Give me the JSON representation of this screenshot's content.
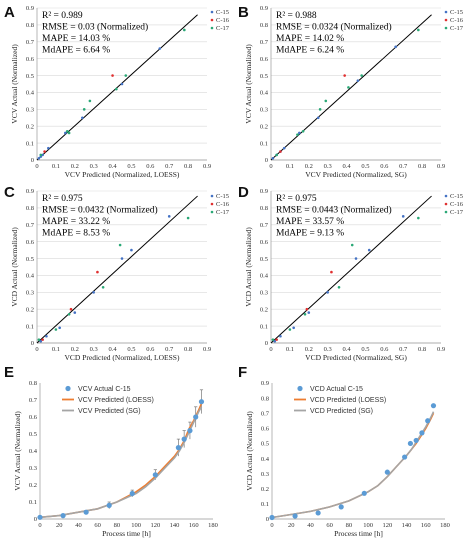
{
  "colors": {
    "c15": "#4472c4",
    "c16": "#e03030",
    "c17": "#2aa876",
    "actual": "#5b9bd5",
    "loess": "#ed7d31",
    "sg": "#a5a5a5",
    "fit": "#000000"
  },
  "chart_data": [
    {
      "panel": "A",
      "type": "scatter",
      "xlabel": "VCV Predicted (Normalized, LOESS)",
      "ylabel": "VCV Actual (Normalized)",
      "xlim": [
        0,
        0.9
      ],
      "ylim": [
        0,
        0.9
      ],
      "xticks": [
        "0",
        "0.1",
        "0.2",
        "0.3",
        "0.4",
        "0.5",
        "0.6",
        "0.7",
        "0.8",
        "0.9"
      ],
      "yticks": [
        "0",
        "0.1",
        "0.2",
        "0.3",
        "0.4",
        "0.5",
        "0.6",
        "0.7",
        "0.8",
        "0.9"
      ],
      "stats": [
        "R² = 0.989",
        "RMSE = 0.03 (Normalized)",
        "MAPE = 14.03 %",
        "MdAPE = 6.64 %"
      ],
      "legend": [
        "C-15",
        "C-16",
        "C-17"
      ],
      "fit_line": [
        [
          0,
          0
        ],
        [
          0.85,
          0.86
        ]
      ],
      "series": [
        {
          "name": "C-15",
          "color": "#4472c4",
          "points": [
            [
              0.01,
              0.01
            ],
            [
              0.02,
              0.02
            ],
            [
              0.03,
              0.03
            ],
            [
              0.06,
              0.07
            ],
            [
              0.15,
              0.16
            ],
            [
              0.24,
              0.25
            ],
            [
              0.45,
              0.45
            ],
            [
              0.65,
              0.66
            ]
          ]
        },
        {
          "name": "C-16",
          "color": "#e03030",
          "points": [
            [
              0.04,
              0.05
            ],
            [
              0.4,
              0.5
            ]
          ]
        },
        {
          "name": "C-17",
          "color": "#2aa876",
          "points": [
            [
              0.02,
              0.03
            ],
            [
              0.16,
              0.17
            ],
            [
              0.17,
              0.16
            ],
            [
              0.25,
              0.3
            ],
            [
              0.28,
              0.35
            ],
            [
              0.42,
              0.42
            ],
            [
              0.47,
              0.5
            ],
            [
              0.78,
              0.77
            ]
          ]
        }
      ]
    },
    {
      "panel": "B",
      "type": "scatter",
      "xlabel": "VCV Predicted (Normalized, SG)",
      "ylabel": "VCV Actual (Normalized)",
      "xlim": [
        0,
        0.9
      ],
      "ylim": [
        0,
        0.9
      ],
      "xticks": [
        "0",
        "0.1",
        "0.2",
        "0.3",
        "0.4",
        "0.5",
        "0.6",
        "0.7",
        "0.8",
        "0.9"
      ],
      "yticks": [
        "0",
        "0.1",
        "0.2",
        "0.3",
        "0.4",
        "0.5",
        "0.6",
        "0.7",
        "0.8",
        "0.9"
      ],
      "stats": [
        "R² = 0.988",
        "RMSE = 0.0324 (Normalized)",
        "MAPE = 14.02 %",
        "MdAPE = 6.24 %"
      ],
      "legend": [
        "C-15",
        "C-16",
        "C-17"
      ],
      "fit_line": [
        [
          0,
          0
        ],
        [
          0.85,
          0.86
        ]
      ],
      "series": [
        {
          "name": "C-15",
          "color": "#4472c4",
          "points": [
            [
              0.01,
              0.01
            ],
            [
              0.03,
              0.03
            ],
            [
              0.05,
              0.05
            ],
            [
              0.07,
              0.07
            ],
            [
              0.15,
              0.16
            ],
            [
              0.25,
              0.25
            ],
            [
              0.46,
              0.47
            ],
            [
              0.66,
              0.67
            ]
          ]
        },
        {
          "name": "C-16",
          "color": "#e03030",
          "points": [
            [
              0.05,
              0.05
            ],
            [
              0.39,
              0.5
            ]
          ]
        },
        {
          "name": "C-17",
          "color": "#2aa876",
          "points": [
            [
              0.03,
              0.03
            ],
            [
              0.14,
              0.15
            ],
            [
              0.17,
              0.17
            ],
            [
              0.26,
              0.3
            ],
            [
              0.29,
              0.35
            ],
            [
              0.41,
              0.43
            ],
            [
              0.48,
              0.5
            ],
            [
              0.78,
              0.77
            ]
          ]
        }
      ]
    },
    {
      "panel": "C",
      "type": "scatter",
      "xlabel": "VCD Predicted (Normalized, LOESS)",
      "ylabel": "VCD Actual (Normalized)",
      "xlim": [
        0,
        0.9
      ],
      "ylim": [
        0,
        0.9
      ],
      "xticks": [
        "0",
        "0.1",
        "0.2",
        "0.3",
        "0.4",
        "0.5",
        "0.6",
        "0.7",
        "0.8",
        "0.9"
      ],
      "yticks": [
        "0",
        "0.1",
        "0.2",
        "0.3",
        "0.4",
        "0.5",
        "0.6",
        "0.7",
        "0.8",
        "0.9"
      ],
      "stats": [
        "R² = 0.975",
        "RMSE = 0.0432 (Normalized)",
        "MAPE = 33.22 %",
        "MdAPE = 8.53 %"
      ],
      "legend": [
        "C-15",
        "C-16",
        "C-17"
      ],
      "fit_line": [
        [
          0,
          0
        ],
        [
          0.85,
          0.87
        ]
      ],
      "series": [
        {
          "name": "C-15",
          "color": "#4472c4",
          "points": [
            [
              0.02,
              0.01
            ],
            [
              0.05,
              0.04
            ],
            [
              0.12,
              0.09
            ],
            [
              0.2,
              0.18
            ],
            [
              0.3,
              0.3
            ],
            [
              0.45,
              0.5
            ],
            [
              0.5,
              0.55
            ],
            [
              0.7,
              0.75
            ]
          ]
        },
        {
          "name": "C-16",
          "color": "#e03030",
          "points": [
            [
              0.03,
              0.02
            ],
            [
              0.18,
              0.2
            ],
            [
              0.32,
              0.42
            ]
          ]
        },
        {
          "name": "C-17",
          "color": "#2aa876",
          "points": [
            [
              0.01,
              0.02
            ],
            [
              0.1,
              0.08
            ],
            [
              0.17,
              0.17
            ],
            [
              0.35,
              0.33
            ],
            [
              0.44,
              0.58
            ],
            [
              0.8,
              0.74
            ]
          ]
        }
      ]
    },
    {
      "panel": "D",
      "type": "scatter",
      "xlabel": "VCD Predicted (Normalized, SG)",
      "ylabel": "VCD Actual (Normalized)",
      "xlim": [
        0,
        0.9
      ],
      "ylim": [
        0,
        0.9
      ],
      "xticks": [
        "0",
        "0.1",
        "0.2",
        "0.3",
        "0.4",
        "0.5",
        "0.6",
        "0.7",
        "0.8",
        "0.9"
      ],
      "yticks": [
        "0",
        "0.1",
        "0.2",
        "0.3",
        "0.4",
        "0.5",
        "0.6",
        "0.7",
        "0.8",
        "0.9"
      ],
      "stats": [
        "R² = 0.975",
        "RMSE = 0.0443 (Normalized)",
        "MAPE = 33.57 %",
        "MdAPE = 9.13 %"
      ],
      "legend": [
        "C-15",
        "C-16",
        "C-17"
      ],
      "fit_line": [
        [
          0,
          0
        ],
        [
          0.85,
          0.87
        ]
      ],
      "series": [
        {
          "name": "C-15",
          "color": "#4472c4",
          "points": [
            [
              0.02,
              0.01
            ],
            [
              0.05,
              0.04
            ],
            [
              0.12,
              0.09
            ],
            [
              0.2,
              0.18
            ],
            [
              0.3,
              0.3
            ],
            [
              0.45,
              0.5
            ],
            [
              0.52,
              0.55
            ],
            [
              0.7,
              0.75
            ]
          ]
        },
        {
          "name": "C-16",
          "color": "#e03030",
          "points": [
            [
              0.03,
              0.02
            ],
            [
              0.19,
              0.2
            ],
            [
              0.32,
              0.42
            ]
          ]
        },
        {
          "name": "C-17",
          "color": "#2aa876",
          "points": [
            [
              0.01,
              0.02
            ],
            [
              0.1,
              0.08
            ],
            [
              0.18,
              0.17
            ],
            [
              0.36,
              0.33
            ],
            [
              0.43,
              0.58
            ],
            [
              0.78,
              0.74
            ]
          ]
        }
      ]
    },
    {
      "panel": "E",
      "type": "line",
      "xlabel": "Process time [h]",
      "ylabel": "VCV Actual (Normalized)",
      "xlim": [
        0,
        180
      ],
      "ylim": [
        0,
        0.8
      ],
      "xticks": [
        "0",
        "20",
        "40",
        "60",
        "80",
        "100",
        "120",
        "140",
        "160",
        "180"
      ],
      "yticks": [
        "0",
        "0.1",
        "0.2",
        "0.3",
        "0.4",
        "0.5",
        "0.6",
        "0.7",
        "0.8"
      ],
      "legend": [
        "VCV Actual C-15",
        "VCV Predicted (LOESS)",
        "VCV Predicted (SG)"
      ],
      "actual": {
        "name": "VCV Actual C-15",
        "x": [
          0,
          24,
          48,
          72,
          96,
          120,
          144,
          150,
          156,
          162,
          168
        ],
        "y": [
          0.01,
          0.02,
          0.04,
          0.08,
          0.15,
          0.26,
          0.42,
          0.47,
          0.52,
          0.6,
          0.69
        ],
        "err": [
          0.005,
          0.01,
          0.01,
          0.02,
          0.02,
          0.03,
          0.05,
          0.05,
          0.05,
          0.06,
          0.07
        ]
      },
      "loess": {
        "name": "VCV Predicted (LOESS)",
        "x": [
          0,
          20,
          40,
          60,
          80,
          100,
          110,
          120,
          130,
          140,
          145,
          150,
          155,
          160,
          165,
          168
        ],
        "y": [
          0.01,
          0.02,
          0.04,
          0.06,
          0.1,
          0.16,
          0.2,
          0.25,
          0.31,
          0.37,
          0.41,
          0.46,
          0.53,
          0.58,
          0.64,
          0.68
        ]
      },
      "sg": {
        "name": "VCV Predicted (SG)",
        "x": [
          0,
          20,
          40,
          60,
          80,
          100,
          110,
          120,
          130,
          140,
          145,
          150,
          155,
          160,
          165,
          168
        ],
        "y": [
          0.01,
          0.02,
          0.04,
          0.06,
          0.1,
          0.15,
          0.19,
          0.24,
          0.3,
          0.36,
          0.4,
          0.45,
          0.51,
          0.57,
          0.63,
          0.66
        ]
      }
    },
    {
      "panel": "F",
      "type": "line",
      "xlabel": "Process time [h]",
      "ylabel": "VCD Actual (Normalized)",
      "xlim": [
        0,
        180
      ],
      "ylim": [
        0,
        0.9
      ],
      "xticks": [
        "0",
        "20",
        "40",
        "60",
        "80",
        "100",
        "120",
        "140",
        "160",
        "180"
      ],
      "yticks": [
        "0",
        "0.1",
        "0.2",
        "0.3",
        "0.4",
        "0.5",
        "0.6",
        "0.7",
        "0.8",
        "0.9"
      ],
      "legend": [
        "VCD Actual C-15",
        "VCD Predicted (LOESS)",
        "VCD Predicted (SG)"
      ],
      "actual": {
        "name": "VCD Actual C-15",
        "x": [
          0,
          24,
          48,
          72,
          96,
          120,
          138,
          144,
          150,
          156,
          162,
          168
        ],
        "y": [
          0.01,
          0.02,
          0.04,
          0.08,
          0.17,
          0.31,
          0.41,
          0.5,
          0.52,
          0.57,
          0.65,
          0.75
        ]
      },
      "loess": {
        "name": "VCD Predicted (LOESS)",
        "x": [
          0,
          20,
          40,
          60,
          80,
          100,
          110,
          120,
          130,
          140,
          145,
          150,
          155,
          160,
          165,
          168
        ],
        "y": [
          0.01,
          0.03,
          0.05,
          0.08,
          0.12,
          0.18,
          0.22,
          0.28,
          0.35,
          0.42,
          0.46,
          0.5,
          0.55,
          0.6,
          0.66,
          0.7
        ]
      },
      "sg": {
        "name": "VCD Predicted (SG)",
        "x": [
          0,
          20,
          40,
          60,
          80,
          100,
          110,
          120,
          130,
          140,
          145,
          150,
          155,
          160,
          165,
          168
        ],
        "y": [
          0.01,
          0.03,
          0.05,
          0.08,
          0.12,
          0.18,
          0.22,
          0.28,
          0.35,
          0.42,
          0.46,
          0.51,
          0.56,
          0.61,
          0.67,
          0.71
        ]
      }
    }
  ]
}
